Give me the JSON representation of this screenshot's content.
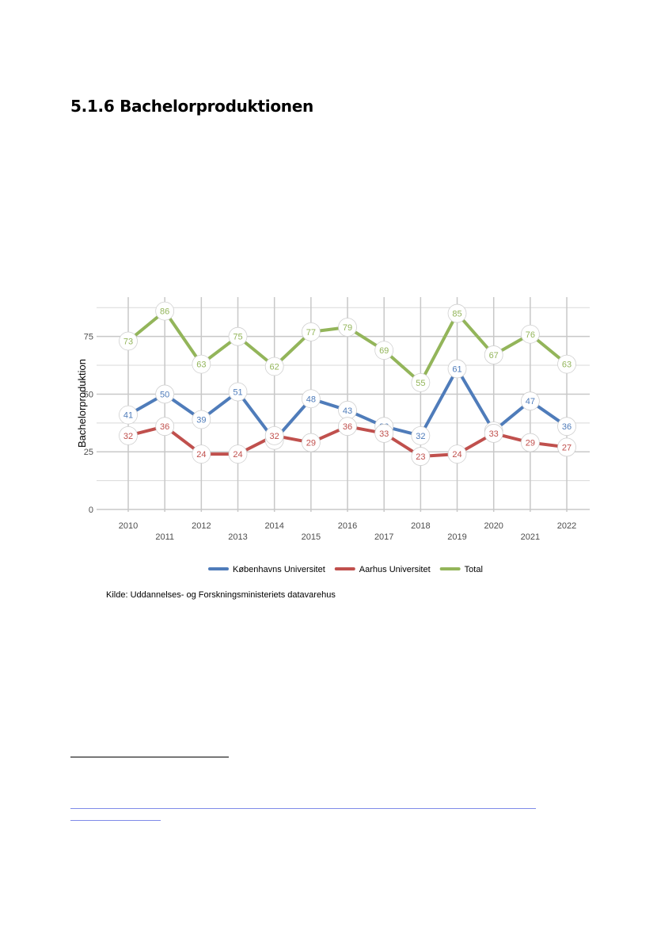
{
  "document": {
    "title": "5.1.6 Bachelorproduktionen",
    "source": "Kilde: Uddannelses- og Forskningsministeriets datavarehus"
  },
  "chart_data": {
    "type": "line",
    "title": "",
    "xlabel": "",
    "ylabel": "Bachelorproduktion",
    "x": [
      "2010",
      "2011",
      "2012",
      "2013",
      "2014",
      "2015",
      "2016",
      "2017",
      "2018",
      "2019",
      "2020",
      "2021",
      "2022"
    ],
    "ylim": [
      0,
      90
    ],
    "yticks": [
      0,
      25,
      50,
      75
    ],
    "grid": true,
    "legend_position": "bottom",
    "series": [
      {
        "name": "Københavns Universitet",
        "color": "#4f7cba",
        "values": [
          41,
          50,
          39,
          51,
          30,
          48,
          43,
          36,
          32,
          61,
          34,
          47,
          36
        ]
      },
      {
        "name": "Aarhus Universitet",
        "color": "#c0504d",
        "values": [
          32,
          36,
          24,
          24,
          32,
          29,
          36,
          33,
          23,
          24,
          33,
          29,
          27
        ]
      },
      {
        "name": "Total",
        "color": "#93b55a",
        "values": [
          73,
          86,
          63,
          75,
          62,
          77,
          79,
          69,
          55,
          85,
          67,
          76,
          63
        ]
      }
    ]
  }
}
